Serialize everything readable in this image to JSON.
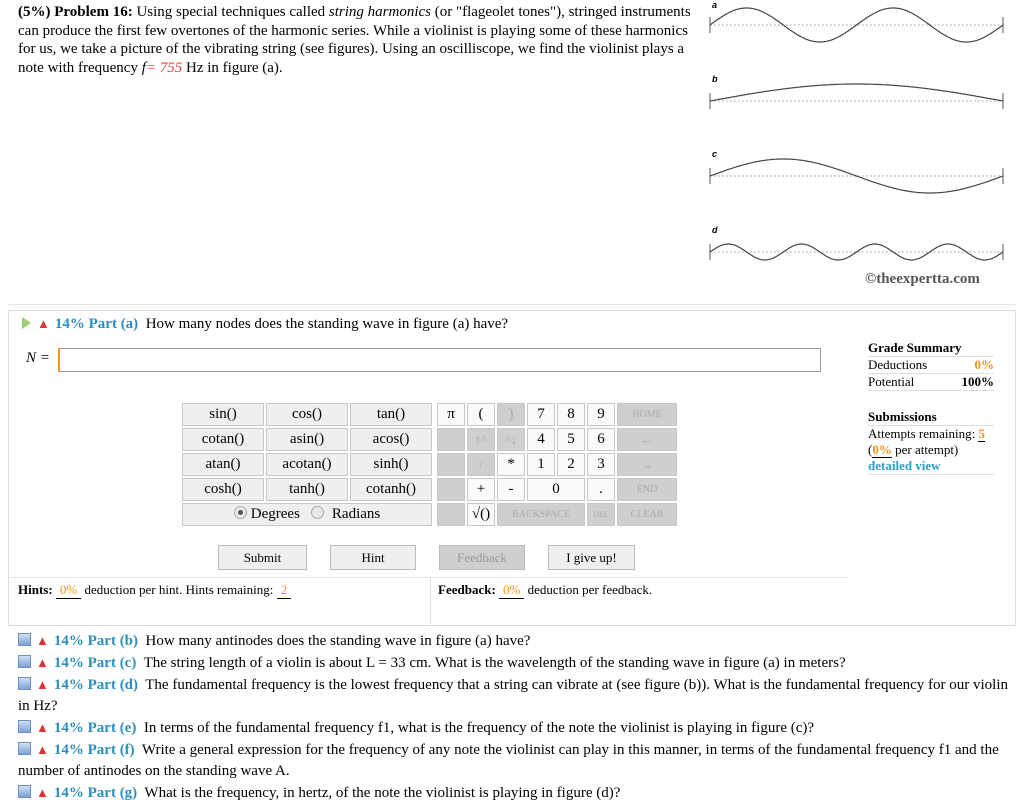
{
  "problem": {
    "prefix": "(5%) Problem 16:",
    "text1": " Using special techniques called ",
    "em1": "string harmonics",
    "text2": " (or \"flageolet tones\"), stringed instruments can produce the first few overtones of the harmonic series. While a violinist is playing some of these harmonics for us, we take a picture of the vibrating string (see figures). Using an oscilliscope, we find the violinist plays a note with frequency ",
    "fvar": "f",
    "fval": "= 755",
    "text3": " Hz in figure (a)."
  },
  "figures": {
    "labels": [
      "a",
      "b",
      "c",
      "d"
    ],
    "copyright": "©theexpertta.com"
  },
  "part_a": {
    "percent": "14%",
    "label": "Part (a)",
    "question": "How many nodes does the standing wave in figure (a) have?",
    "input_label": "N =",
    "input_value": ""
  },
  "grade": {
    "title": "Grade Summary",
    "deductions_label": "Deductions",
    "deductions": "0%",
    "potential_label": "Potential",
    "potential": "100%",
    "submissions_title": "Submissions",
    "attempts_label": "Attempts remaining:",
    "attempts": "5",
    "per_open": "(",
    "per_value": "0%",
    "per_close": " per attempt)",
    "detailed": "detailed view"
  },
  "calc": {
    "functions": [
      [
        "sin()",
        "cos()",
        "tan()"
      ],
      [
        "cotan()",
        "asin()",
        "acos()"
      ],
      [
        "atan()",
        "acotan()",
        "sinh()"
      ],
      [
        "cosh()",
        "tanh()",
        "cotanh()"
      ]
    ],
    "degrees": "Degrees",
    "radians": "Radians",
    "angle_mode": "Degrees",
    "keys": {
      "pi": "π",
      "lparen": "(",
      "rparen": ")",
      "k7": "7",
      "k8": "8",
      "k9": "9",
      "home": "HOME",
      "up": "↑^",
      "down": "^↓",
      "k4": "4",
      "k5": "5",
      "k6": "6",
      "left": "←",
      "div": "/",
      "mul": "*",
      "k1": "1",
      "k2": "2",
      "k3": "3",
      "right": "→",
      "plus": "+",
      "minus": "-",
      "k0": "0",
      "dot": ".",
      "end": "END",
      "sqrt": "√()",
      "backspace": "BACKSPACE",
      "del": "DEL",
      "clear": "CLEAR"
    }
  },
  "buttons": {
    "submit": "Submit",
    "hint": "Hint",
    "feedback": "Feedback",
    "giveup": "I give up!"
  },
  "hints": {
    "label": "Hints:",
    "pct": "0%",
    "text": " deduction per hint. Hints remaining: ",
    "remaining": "2"
  },
  "feedback": {
    "label": "Feedback:",
    "pct": "0%",
    "text": " deduction per feedback."
  },
  "parts": [
    {
      "percent": "14%",
      "label": "Part (b)",
      "question": "How many antinodes does the standing wave in figure (a) have?"
    },
    {
      "percent": "14%",
      "label": "Part (c)",
      "question": "The string length of a violin is about L = 33 cm. What is the wavelength of the standing wave in figure (a) in meters?"
    },
    {
      "percent": "14%",
      "label": "Part (d)",
      "question": "The fundamental frequency is the lowest frequency that a string can vibrate at (see figure (b)). What is the fundamental frequency for our violin in Hz?"
    },
    {
      "percent": "14%",
      "label": "Part (e)",
      "question": "In terms of the fundamental frequency f1, what is the frequency of the note the violinist is playing in figure (c)?"
    },
    {
      "percent": "14%",
      "label": "Part (f)",
      "question": "Write a general expression for the frequency of any note the violinist can play in this manner, in terms of the fundamental frequency f1 and the number of antinodes on the standing wave A."
    },
    {
      "percent": "14%",
      "label": "Part (g)",
      "question": "What is the frequency, in hertz, of the note the violinist is playing in figure (d)?"
    }
  ],
  "colors": {
    "accent": "#2a8fbd",
    "orange": "#f7931e",
    "red": "#e8443a"
  }
}
